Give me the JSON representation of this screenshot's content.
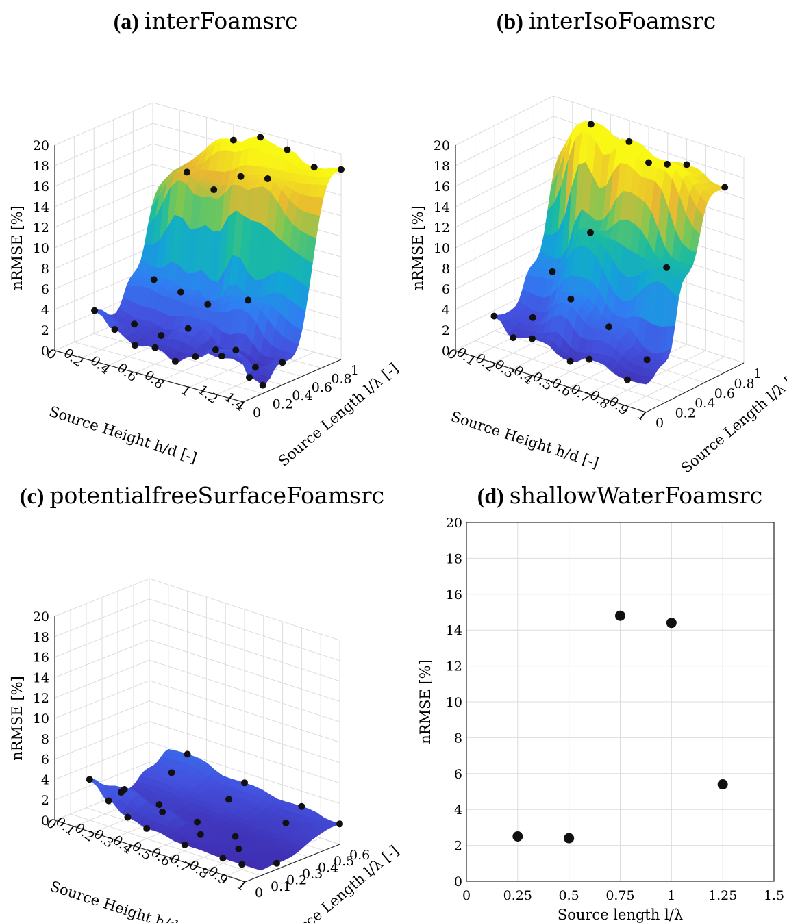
{
  "panels": [
    {
      "id": "a",
      "tag": "(a)",
      "title": "interFoamsrc",
      "zlabel": "nRMSE [%]",
      "xlabel": "Source Height h/d [-]",
      "ylabel": "Source Length l/λ [-]",
      "zticks": [
        "0",
        "2",
        "4",
        "6",
        "8",
        "10",
        "12",
        "14",
        "16",
        "18",
        "20"
      ],
      "xticks": [
        "0",
        "0.2",
        "0.4",
        "0.6",
        "0.8",
        "1",
        "1.2",
        "1.4"
      ],
      "yticks": [
        "0",
        "0.2",
        "0.4",
        "0.6",
        "0.8",
        "1"
      ]
    },
    {
      "id": "b",
      "tag": "(b)",
      "title": "interIsoFoamsrc",
      "zlabel": "nRMSE [%]",
      "xlabel": "Source Height h/d [-]",
      "ylabel": "Source Length l/λ [-]",
      "zticks": [
        "0",
        "2",
        "4",
        "6",
        "8",
        "10",
        "12",
        "14",
        "16",
        "18",
        "20"
      ],
      "xticks": [
        "0",
        "0.1",
        "0.2",
        "0.3",
        "0.4",
        "0.5",
        "0.6",
        "0.7",
        "0.8",
        "0.9",
        "1"
      ],
      "yticks": [
        "0",
        "0.2",
        "0.4",
        "0.6",
        "0.8",
        "1"
      ]
    },
    {
      "id": "c",
      "tag": "(c)",
      "title": "potentialfreeSurfaceFoamsrc",
      "zlabel": "nRMSE [%]",
      "xlabel": "Source Height h/d [-]",
      "ylabel": "Source Length l/λ [-]",
      "zticks": [
        "0",
        "2",
        "4",
        "6",
        "8",
        "10",
        "12",
        "14",
        "16",
        "18",
        "20"
      ],
      "xticks": [
        "0",
        "0.1",
        "0.2",
        "0.3",
        "0.4",
        "0.5",
        "0.6",
        "0.7",
        "0.8",
        "0.9",
        "1"
      ],
      "yticks": [
        "0",
        "0.1",
        "0.2",
        "0.3",
        "0.4",
        "0.5",
        "0.6"
      ]
    },
    {
      "id": "d",
      "tag": "(d)",
      "title": "shallowWaterFoamsrc",
      "zlabel": "nRMSE [%]",
      "xlabel": "Source length l/λ",
      "xticks": [
        "0",
        "0.25",
        "0.5",
        "0.75",
        "1",
        "1.25",
        "1.5"
      ],
      "yticks": [
        "0",
        "2",
        "4",
        "6",
        "8",
        "10",
        "12",
        "14",
        "16",
        "18",
        "20"
      ]
    }
  ],
  "chart_data": [
    {
      "panel": "a",
      "type": "scatter",
      "surface": true,
      "x_range": [
        0,
        1.4
      ],
      "y_range": [
        0,
        1
      ],
      "z_range": [
        0,
        20
      ],
      "points": [
        [
          0.15,
          0.2,
          3.6
        ],
        [
          0.3,
          0.2,
          2.3
        ],
        [
          0.45,
          0.2,
          1.3
        ],
        [
          0.6,
          0.2,
          1.6
        ],
        [
          0.75,
          0.2,
          0.8
        ],
        [
          0.9,
          0.2,
          1.8
        ],
        [
          1.05,
          0.2,
          3.0
        ],
        [
          1.2,
          0.2,
          3.5
        ],
        [
          1.3,
          0.2,
          1.2
        ],
        [
          1.4,
          0.2,
          0.8
        ],
        [
          0.3,
          0.4,
          2.0
        ],
        [
          0.5,
          0.4,
          1.6
        ],
        [
          0.7,
          0.4,
          3.0
        ],
        [
          0.95,
          0.4,
          1.2
        ],
        [
          1.2,
          0.4,
          1.0
        ],
        [
          1.4,
          0.4,
          2.2
        ],
        [
          0.3,
          0.6,
          5.5
        ],
        [
          0.5,
          0.6,
          5.0
        ],
        [
          0.7,
          0.6,
          4.5
        ],
        [
          1.0,
          0.6,
          6.0
        ],
        [
          0.4,
          0.8,
          15.5
        ],
        [
          0.6,
          0.8,
          14.5
        ],
        [
          0.8,
          0.8,
          16.5
        ],
        [
          1.0,
          0.8,
          17.0
        ],
        [
          0.6,
          1.0,
          18.5
        ],
        [
          0.8,
          1.0,
          19.5
        ],
        [
          1.0,
          1.0,
          19.0
        ],
        [
          1.2,
          1.0,
          18.0
        ],
        [
          1.4,
          1.0,
          18.5
        ]
      ]
    },
    {
      "panel": "b",
      "type": "scatter",
      "surface": true,
      "x_range": [
        0,
        1
      ],
      "y_range": [
        0,
        1
      ],
      "z_range": [
        0,
        20
      ],
      "points": [
        [
          0.1,
          0.2,
          3.0
        ],
        [
          0.2,
          0.2,
          1.5
        ],
        [
          0.3,
          0.2,
          2.0
        ],
        [
          0.5,
          0.2,
          1.0
        ],
        [
          0.6,
          0.2,
          1.8
        ],
        [
          0.8,
          0.2,
          1.0
        ],
        [
          0.2,
          0.4,
          2.5
        ],
        [
          0.4,
          0.4,
          5.5
        ],
        [
          0.6,
          0.4,
          4.0
        ],
        [
          0.8,
          0.4,
          2.0
        ],
        [
          0.2,
          0.6,
          6.0
        ],
        [
          0.4,
          0.6,
          11.0
        ],
        [
          0.8,
          0.6,
          10.0
        ],
        [
          0.3,
          0.8,
          20.0
        ],
        [
          0.5,
          0.8,
          19.5
        ],
        [
          0.7,
          0.8,
          18.5
        ],
        [
          0.5,
          1.0,
          16.5
        ],
        [
          0.7,
          1.0,
          17.5
        ],
        [
          0.9,
          1.0,
          16.5
        ]
      ]
    },
    {
      "panel": "c",
      "type": "scatter",
      "surface": true,
      "x_range": [
        0,
        1
      ],
      "y_range": [
        0,
        0.6
      ],
      "z_range": [
        0,
        20
      ],
      "points": [
        [
          0.1,
          0.1,
          4.0
        ],
        [
          0.2,
          0.1,
          2.5
        ],
        [
          0.3,
          0.1,
          1.5
        ],
        [
          0.4,
          0.1,
          1.0
        ],
        [
          0.6,
          0.1,
          0.6
        ],
        [
          0.8,
          0.1,
          0.5
        ],
        [
          0.9,
          0.1,
          0.5
        ],
        [
          0.2,
          0.2,
          3.0
        ],
        [
          0.4,
          0.2,
          2.0
        ],
        [
          0.6,
          0.2,
          1.0
        ],
        [
          0.8,
          0.2,
          0.8
        ],
        [
          1.0,
          0.2,
          0.6
        ],
        [
          0.1,
          0.3,
          1.5
        ],
        [
          0.3,
          0.3,
          1.5
        ],
        [
          0.5,
          0.3,
          1.0
        ],
        [
          0.7,
          0.3,
          0.8
        ],
        [
          0.2,
          0.5,
          2.8
        ],
        [
          0.5,
          0.5,
          2.0
        ],
        [
          0.8,
          0.5,
          1.5
        ],
        [
          0.2,
          0.6,
          4.0
        ],
        [
          0.5,
          0.6,
          3.0
        ],
        [
          0.8,
          0.6,
          2.5
        ],
        [
          1.0,
          0.6,
          2.0
        ]
      ]
    },
    {
      "panel": "d",
      "type": "scatter",
      "x": [
        0.25,
        0.5,
        0.75,
        1.0,
        1.25
      ],
      "y": [
        2.5,
        2.4,
        14.8,
        14.4,
        5.4
      ],
      "xlim": [
        0,
        1.5
      ],
      "ylim": [
        0,
        20
      ],
      "xlabel": "Source length l/λ",
      "ylabel": "nRMSE [%]",
      "grid": true
    }
  ]
}
